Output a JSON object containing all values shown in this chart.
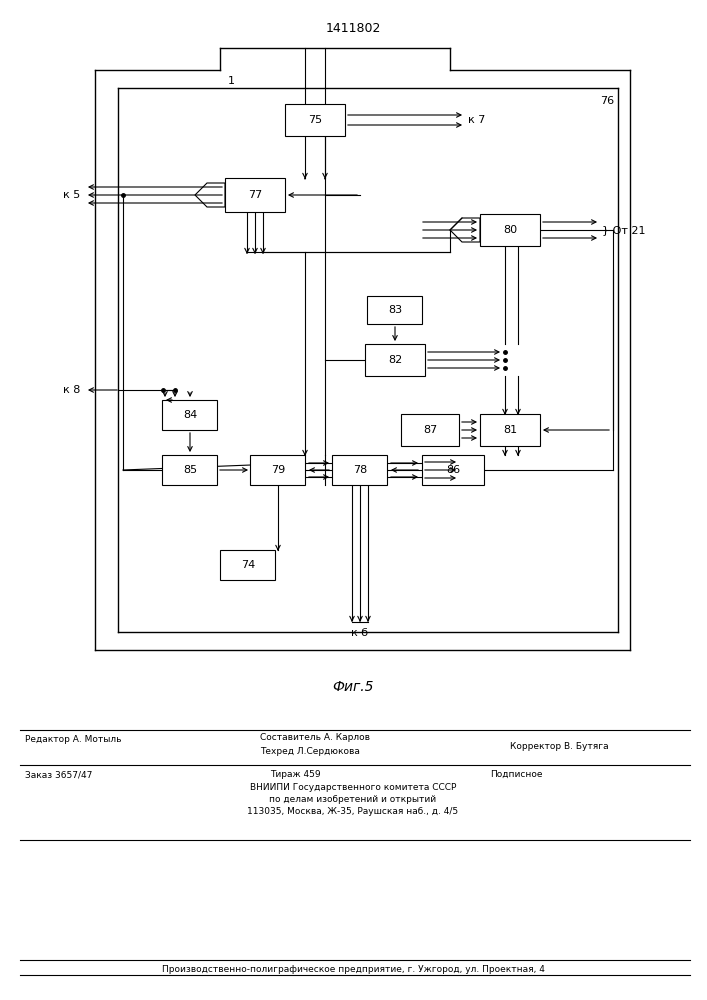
{
  "title": "1411802",
  "bg_color": "#ffffff",
  "line_color": "#000000",
  "fig_label": "Фиг.5",
  "footer": {
    "editor": "Редактор А. Мотыль",
    "composer": "Составитель А. Карлов",
    "techred": "Техред Л.Сердюкова",
    "corrector": "Корректор В. Бутяга",
    "order": "Заказ 3657/47",
    "tirazh": "Тираж 459",
    "podpisnoe": "Подписное",
    "vniip1": "ВНИИПИ Государственного комитета СССР",
    "vniip2": "по делам изобретений и открытий",
    "address": "113035, Москва, Ж-35, Раушская наб., д. 4/5",
    "plant": "Производственно-полиграфическое предприятие, г. Ужгород, ул. Проектная, 4"
  },
  "k5": "к 5",
  "k7": "к 7",
  "k8": "к 8",
  "kb": "к б",
  "ot21": "От 21"
}
